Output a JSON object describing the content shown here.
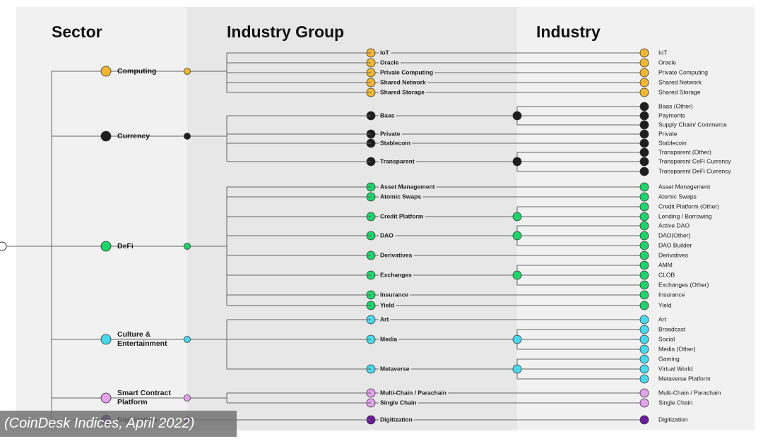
{
  "headers": {
    "sector": "Sector",
    "group": "Industry Group",
    "industry": "Industry"
  },
  "caption": "(CoinDesk Indices, April 2022)",
  "colors": {
    "computing": "#f2b632",
    "currency": "#1e1e1e",
    "defi": "#1fd36b",
    "culture": "#49d9ee",
    "smart": "#e2a3ec",
    "digitization": "#6a1b9a",
    "line": "#666666",
    "node_stroke": "#333333",
    "band_sector": "#f1f1f1",
    "band_group": "#e7e7e7",
    "band_industry": "#f1f1f1"
  },
  "sectors": [
    {
      "name": "Computing",
      "color_key": "computing",
      "groups": [
        {
          "name": "IoT",
          "industries": [
            "IoT"
          ]
        },
        {
          "name": "Oracle",
          "industries": [
            "Oracle"
          ]
        },
        {
          "name": "Privale Computing",
          "industries": [
            "Private Computing"
          ]
        },
        {
          "name": "Shared Network",
          "industries": [
            "Shared Network"
          ]
        },
        {
          "name": "Shared Storage",
          "industries": [
            "Shared Storage"
          ]
        }
      ]
    },
    {
      "name": "Currency",
      "color_key": "currency",
      "groups": [
        {
          "name": "Baas",
          "industries": [
            "Baas (Other)",
            "Payments",
            "Supply Chain/ Commerce"
          ]
        },
        {
          "name": "Private",
          "industries": [
            "Private"
          ]
        },
        {
          "name": "Stablecoin",
          "industries": [
            "Stablecoin"
          ]
        },
        {
          "name": "Transparent",
          "industries": [
            "Transparent (Other)",
            "Transparent CeFi Currency",
            "Transparent DeFi Currency"
          ]
        }
      ]
    },
    {
      "name": "DeFi",
      "color_key": "defi",
      "groups": [
        {
          "name": "Asset Management",
          "industries": [
            "Asset Management"
          ]
        },
        {
          "name": "Atomic Swaps",
          "industries": [
            "Atomic Swaps"
          ]
        },
        {
          "name": "Credit Platform",
          "industries": [
            "Credit Platform (Other)",
            "Lending / Borrowing"
          ]
        },
        {
          "name": "DAO",
          "industries": [
            "Active DAO",
            "DAO(Other)",
            "DAO Builder"
          ]
        },
        {
          "name": "Derivatives",
          "industries": [
            "Derivatives"
          ]
        },
        {
          "name": "Exchanges",
          "industries": [
            "AMM",
            "CLOB",
            "Exchanges (Other)"
          ]
        },
        {
          "name": "Insurance",
          "industries": [
            "Insurance"
          ]
        },
        {
          "name": "Yield",
          "industries": [
            "Yield"
          ]
        }
      ]
    },
    {
      "name": "Culture & Entertainment",
      "color_key": "culture",
      "groups": [
        {
          "name": "Art",
          "industries": [
            "Art"
          ]
        },
        {
          "name": "Media",
          "industries": [
            "Broadcast",
            "Social",
            "Media (Other)"
          ]
        },
        {
          "name": "Metaverse",
          "industries": [
            "Gaming",
            "Virtual World",
            "Metaverse Platform"
          ]
        }
      ]
    },
    {
      "name": "Smart Contract Platform",
      "color_key": "smart",
      "groups": [
        {
          "name": "Multi-Chain / Parachain",
          "industries": [
            "Multi-Chain / Parachain"
          ]
        },
        {
          "name": "Single Chain",
          "industries": [
            "Single Chain"
          ]
        }
      ]
    },
    {
      "name": "Digitization",
      "color_key": "digitization",
      "groups": [
        {
          "name": "Digitization",
          "industries": [
            "Digitization"
          ]
        }
      ]
    }
  ]
}
